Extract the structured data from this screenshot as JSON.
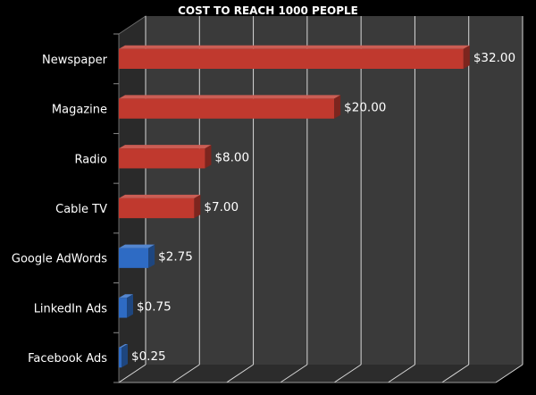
{
  "chart_data": {
    "type": "bar",
    "orientation": "horizontal",
    "title": "COST TO REACH 1000 PEOPLE",
    "categories": [
      "Newspaper",
      "Magazine",
      "Radio",
      "Cable TV",
      "Google AdWords",
      "LinkedIn Ads",
      "Facebook Ads"
    ],
    "values": [
      32.0,
      20.0,
      8.0,
      7.0,
      2.75,
      0.75,
      0.25
    ],
    "data_labels": [
      "$32.00",
      "$20.00",
      "$8.00",
      "$7.00",
      "$2.75",
      "$0.75",
      "$0.25"
    ],
    "xlim": [
      0,
      35
    ],
    "grid": true,
    "legend": "none",
    "colors": {
      "background": "#000000",
      "plot_area": "#3a3a3a",
      "gridline": "#d8d8d8",
      "traditional_bar": "#c0392e",
      "online_bar": "#2e6bc4",
      "text": "#ffffff"
    },
    "bar_color_groups": [
      "traditional",
      "traditional",
      "traditional",
      "traditional",
      "online",
      "online",
      "online"
    ]
  }
}
